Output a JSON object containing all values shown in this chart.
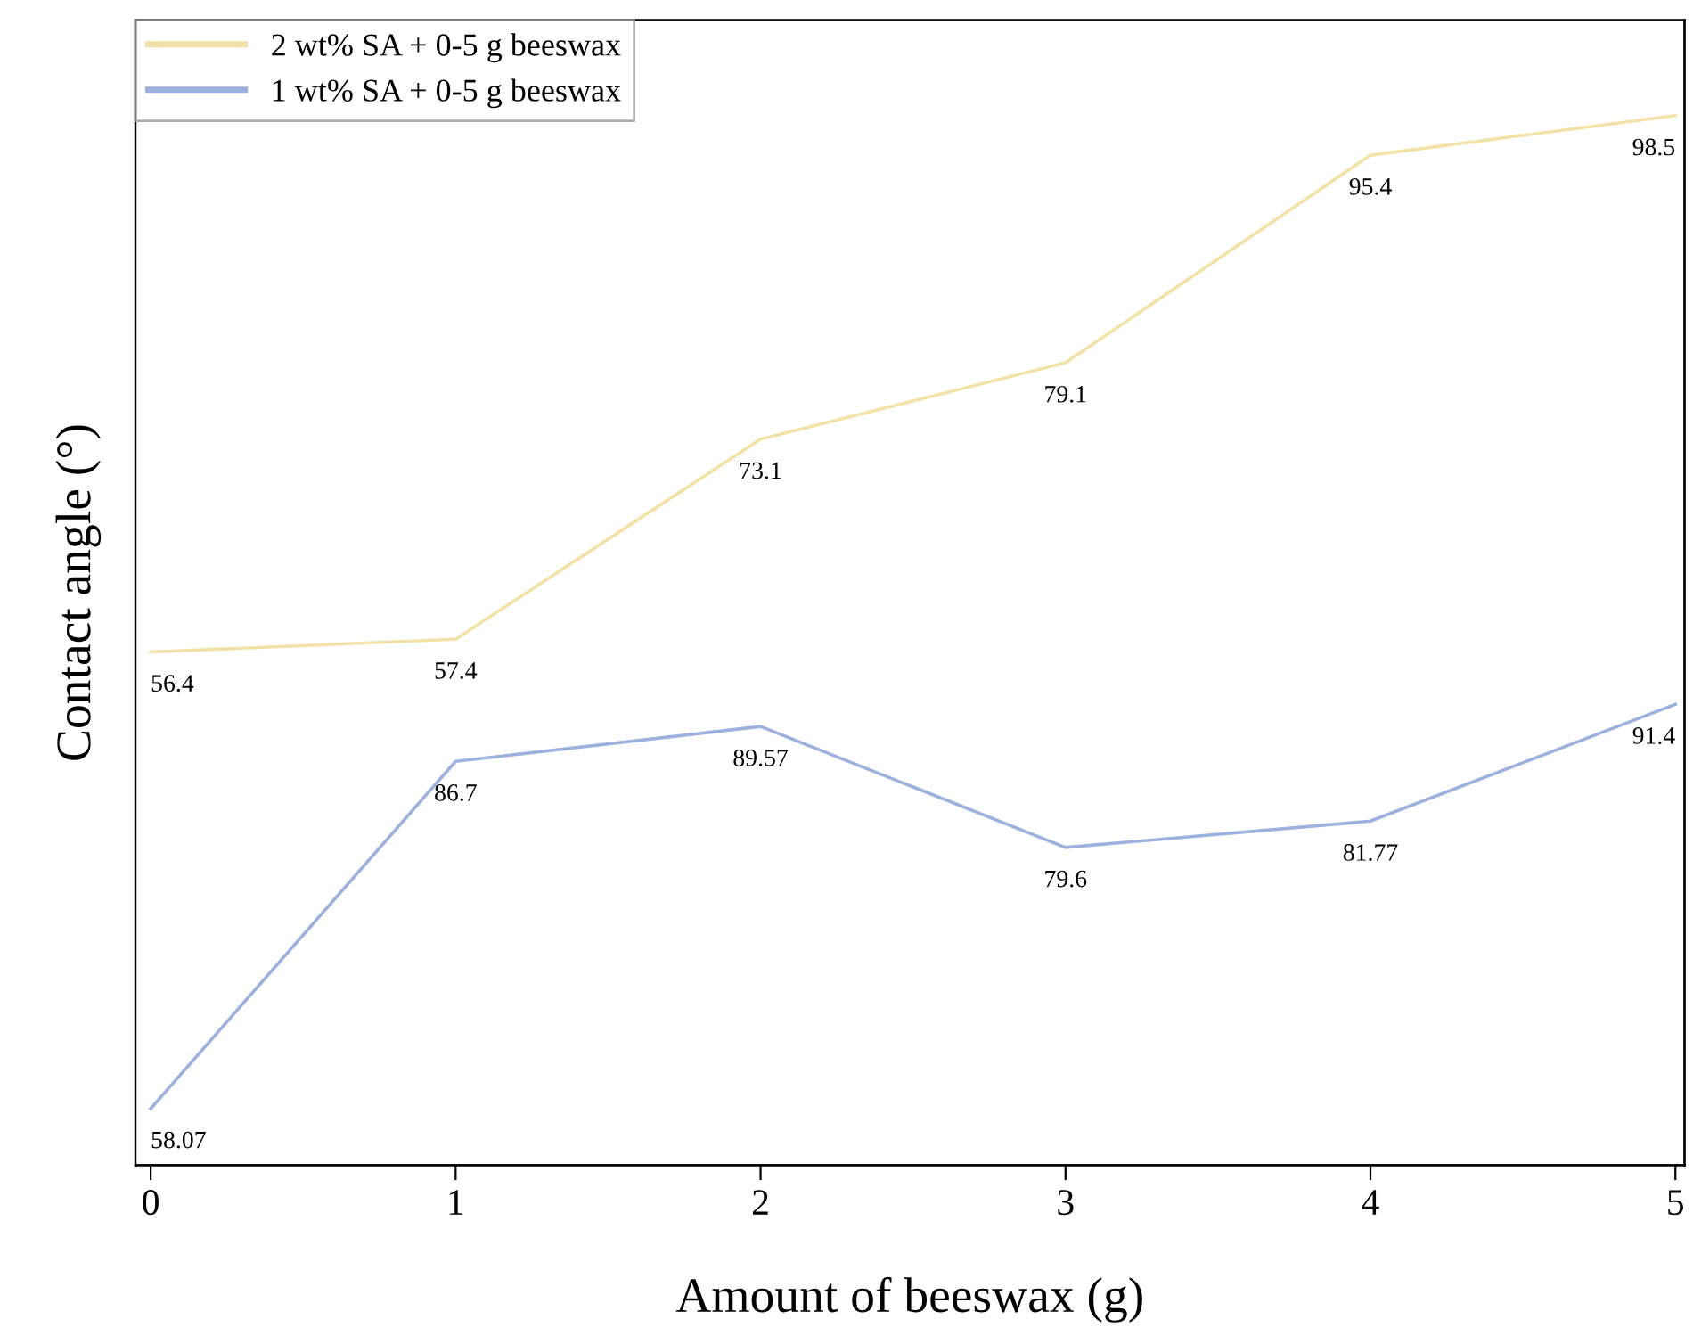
{
  "chart_data": {
    "type": "line",
    "xlabel": "Amount of beeswax (g)",
    "ylabel": "Contact angle (°)",
    "x": [
      0,
      1,
      2,
      3,
      4,
      5
    ],
    "xlim": [
      -0.05,
      5.03
    ],
    "xticks": [
      0,
      1,
      2,
      3,
      4,
      5
    ],
    "ylim": [
      16.1,
      106.0
    ],
    "y2lim": [
      53.4,
      147.8
    ],
    "tick_labels": "x",
    "data_labels": true,
    "legend": "top left",
    "grid": false,
    "series": [
      {
        "name": "2 wt% SA + 0-5 g beeswax",
        "color": "#f2e2a8",
        "values": [
          56.4,
          57.4,
          73.1,
          79.1,
          95.4,
          98.5
        ]
      },
      {
        "name": "1 wt% SA + 0-5 g beeswax",
        "color": "#9db1de",
        "axis": "y2",
        "values": [
          58.07,
          86.7,
          89.57,
          79.6,
          81.77,
          91.4
        ]
      }
    ]
  }
}
